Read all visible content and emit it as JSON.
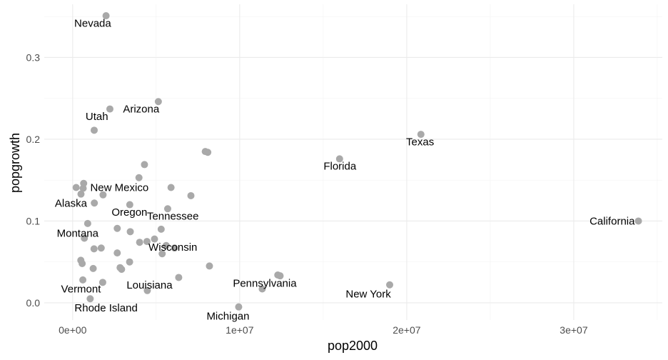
{
  "chart_data": {
    "type": "scatter",
    "xlabel": "pop2000",
    "ylabel": "popgrowth",
    "xlim": [
      -1700000,
      35300000
    ],
    "ylim": [
      -0.021,
      0.365
    ],
    "x_ticks": [
      0,
      10000000,
      20000000,
      30000000
    ],
    "x_tick_labels": [
      "0e+00",
      "1e+07",
      "2e+07",
      "3e+07"
    ],
    "x_minor": [
      5000000,
      15000000,
      25000000,
      35000000
    ],
    "y_ticks": [
      0.0,
      0.1,
      0.2,
      0.3
    ],
    "y_tick_labels": [
      "0.0",
      "0.1",
      "0.2",
      "0.3"
    ],
    "y_minor": [
      0.05,
      0.15,
      0.25,
      0.35
    ],
    "grid": true,
    "point_color": "#a9a9a9",
    "points": [
      {
        "label": "Nevada",
        "x": 2000000,
        "y": 0.351,
        "lx": 1200000,
        "ly": 0.342
      },
      {
        "label": "Arizona",
        "x": 5130000,
        "y": 0.246,
        "lx": 4100000,
        "ly": 0.237
      },
      {
        "label": "Utah",
        "x": 2230000,
        "y": 0.237,
        "lx": 1450000,
        "ly": 0.228
      },
      {
        "label": "Texas",
        "x": 20850000,
        "y": 0.206,
        "lx": 20800000,
        "ly": 0.197
      },
      {
        "label": "Florida",
        "x": 15980000,
        "y": 0.176,
        "lx": 16000000,
        "ly": 0.167
      },
      {
        "label": "New Mexico",
        "x": 1820000,
        "y": 0.132,
        "lx": 2800000,
        "ly": 0.141
      },
      {
        "label": "Alaska",
        "x": 630000,
        "y": 0.14,
        "lx": -100000,
        "ly": 0.122
      },
      {
        "label": "Oregon",
        "x": 3420000,
        "y": 0.12,
        "lx": 3400000,
        "ly": 0.111
      },
      {
        "label": "Tennessee",
        "x": 5690000,
        "y": 0.115,
        "lx": 6000000,
        "ly": 0.106
      },
      {
        "label": "California",
        "x": 33870000,
        "y": 0.1,
        "lx": 32300000,
        "ly": 0.1
      },
      {
        "label": "Montana",
        "x": 900000,
        "y": 0.097,
        "lx": 300000,
        "ly": 0.085
      },
      {
        "label": "Wisconsin",
        "x": 5360000,
        "y": 0.06,
        "lx": 6000000,
        "ly": 0.068
      },
      {
        "label": "Pennsylvania",
        "x": 12280000,
        "y": 0.034,
        "lx": 11500000,
        "ly": 0.024
      },
      {
        "label": "Louisiana",
        "x": 4470000,
        "y": 0.015,
        "lx": 4600000,
        "ly": 0.022
      },
      {
        "label": "New York",
        "x": 18980000,
        "y": 0.022,
        "lx": 17700000,
        "ly": 0.011
      },
      {
        "label": "Vermont",
        "x": 610000,
        "y": 0.028,
        "lx": 500000,
        "ly": 0.017
      },
      {
        "label": "Rhode Island",
        "x": 1050000,
        "y": 0.005,
        "lx": 2000000,
        "ly": -0.006
      },
      {
        "label": "Michigan",
        "x": 9940000,
        "y": -0.005,
        "lx": 9300000,
        "ly": -0.016
      },
      {
        "x": 7940000,
        "y": 0.185
      },
      {
        "x": 8090000,
        "y": 0.184
      },
      {
        "x": 4300000,
        "y": 0.169
      },
      {
        "x": 3970000,
        "y": 0.153
      },
      {
        "x": 660000,
        "y": 0.146
      },
      {
        "x": 210000,
        "y": 0.141
      },
      {
        "x": 5890000,
        "y": 0.141
      },
      {
        "x": 7080000,
        "y": 0.131
      },
      {
        "x": 500000,
        "y": 0.133
      },
      {
        "x": 1300000,
        "y": 0.122
      },
      {
        "x": 1290000,
        "y": 0.211
      },
      {
        "x": 2670000,
        "y": 0.091
      },
      {
        "x": 3450000,
        "y": 0.087
      },
      {
        "x": 5300000,
        "y": 0.09
      },
      {
        "x": 4900000,
        "y": 0.078
      },
      {
        "x": 4010000,
        "y": 0.074
      },
      {
        "x": 4450000,
        "y": 0.075
      },
      {
        "x": 5600000,
        "y": 0.07
      },
      {
        "x": 6100000,
        "y": 0.067
      },
      {
        "x": 700000,
        "y": 0.079
      },
      {
        "x": 1280000,
        "y": 0.066
      },
      {
        "x": 1710000,
        "y": 0.067
      },
      {
        "x": 2670000,
        "y": 0.061
      },
      {
        "x": 490000,
        "y": 0.052
      },
      {
        "x": 570000,
        "y": 0.048
      },
      {
        "x": 1230000,
        "y": 0.042
      },
      {
        "x": 3410000,
        "y": 0.05
      },
      {
        "x": 2840000,
        "y": 0.043
      },
      {
        "x": 2930000,
        "y": 0.041
      },
      {
        "x": 8190000,
        "y": 0.045
      },
      {
        "x": 6350000,
        "y": 0.031
      },
      {
        "x": 12420000,
        "y": 0.033
      },
      {
        "x": 11350000,
        "y": 0.017
      },
      {
        "x": 1800000,
        "y": 0.025
      }
    ]
  }
}
